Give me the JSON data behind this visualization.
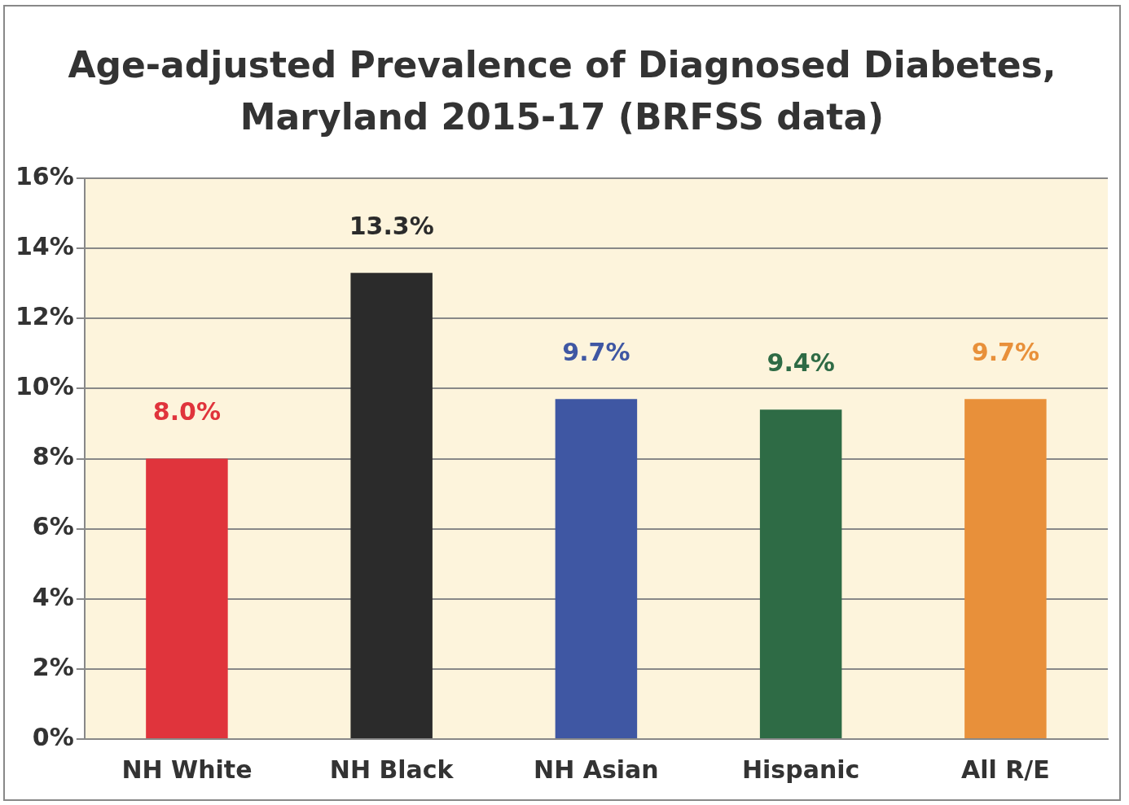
{
  "chart_data": {
    "type": "bar",
    "title": "Age-adjusted Prevalence of Diagnosed Diabetes,\nMaryland 2015-17 (BRFSS data)",
    "categories": [
      "NH White",
      "NH Black",
      "NH Asian",
      "Hispanic",
      "All R/E"
    ],
    "values": [
      8.0,
      13.3,
      9.7,
      9.4,
      9.7
    ],
    "value_labels": [
      "8.0%",
      "13.3%",
      "9.7%",
      "9.4%",
      "9.7%"
    ],
    "colors": [
      "#e0343c",
      "#2b2b2b",
      "#3f57a3",
      "#2e6b45",
      "#e8903a"
    ],
    "ylim": [
      0,
      16
    ],
    "yticks": [
      {
        "value": 0,
        "label": "0%"
      },
      {
        "value": 2,
        "label": "2%"
      },
      {
        "value": 4,
        "label": "4%"
      },
      {
        "value": 6,
        "label": "6%"
      },
      {
        "value": 8,
        "label": "8%"
      },
      {
        "value": 10,
        "label": "10%"
      },
      {
        "value": 12,
        "label": "12%"
      },
      {
        "value": 14,
        "label": "14%"
      },
      {
        "value": 16,
        "label": "16%"
      }
    ],
    "grid": "y",
    "legend": false
  }
}
